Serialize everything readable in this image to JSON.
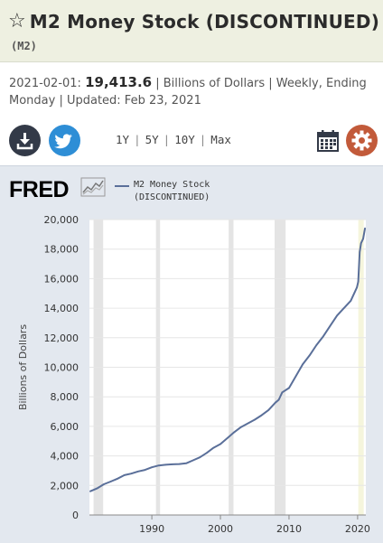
{
  "header": {
    "star_icon": "star-outline-icon",
    "title": "M2 Money Stock (DISCONTINUED)",
    "series_id": "(M2)"
  },
  "meta": {
    "date": "2021-02-01:",
    "value": "19,413.6",
    "details": "| Billions of Dollars | Weekly, Ending Monday | Updated: Feb 23, 2021"
  },
  "toolbar": {
    "ranges": [
      "1Y",
      "5Y",
      "10Y",
      "Max"
    ],
    "download_icon": "download-icon",
    "twitter_icon": "twitter-icon",
    "calendar_icon": "calendar-icon",
    "settings_icon": "gear-icon",
    "colors": {
      "download": "#333a48",
      "twitter": "#2e8ed6",
      "settings": "#c25a3a"
    }
  },
  "chart_panel": {
    "logo": "FRED",
    "legend_line1": "— M2 Money Stock",
    "legend_line2": "(DISCONTINUED)"
  },
  "chart_data": {
    "type": "line",
    "ylabel": "Billions of Dollars",
    "xlabel": "",
    "ylim": [
      0,
      20000
    ],
    "xlim": [
      1980.9,
      2021.2
    ],
    "yticks": [
      0,
      2000,
      4000,
      6000,
      8000,
      10000,
      12000,
      14000,
      16000,
      18000,
      20000
    ],
    "ytick_labels": [
      "0",
      "2,000",
      "4,000",
      "6,000",
      "8,000",
      "10,000",
      "12,000",
      "14,000",
      "16,000",
      "18,000",
      "20,000"
    ],
    "xticks": [
      1990,
      2000,
      2010,
      2020
    ],
    "xtick_labels": [
      "1990",
      "2000",
      "2010",
      "2020"
    ],
    "grid": true,
    "recessions": [
      [
        1981.5,
        1982.9
      ],
      [
        1990.6,
        1991.2
      ],
      [
        2001.2,
        2001.9
      ],
      [
        2007.9,
        2009.5
      ],
      [
        2020.1,
        2020.4
      ]
    ],
    "series": [
      {
        "name": "M2 Money Stock",
        "color": "#5a6f99",
        "x": [
          1981.0,
          1982.0,
          1983.0,
          1984.0,
          1985.0,
          1986.0,
          1987.0,
          1988.0,
          1989.0,
          1990.0,
          1991.0,
          1992.0,
          1993.0,
          1994.0,
          1995.0,
          1996.0,
          1997.0,
          1998.0,
          1999.0,
          2000.0,
          2001.0,
          2002.0,
          2003.0,
          2004.0,
          2005.0,
          2006.0,
          2007.0,
          2008.0,
          2008.5,
          2009.0,
          2010.0,
          2011.0,
          2012.0,
          2013.0,
          2014.0,
          2015.0,
          2016.0,
          2017.0,
          2018.0,
          2019.0,
          2019.9,
          2020.1,
          2020.3,
          2020.5,
          2020.8,
          2021.08
        ],
        "values": [
          1600,
          1800,
          2080,
          2260,
          2460,
          2700,
          2800,
          2950,
          3050,
          3230,
          3350,
          3400,
          3430,
          3450,
          3500,
          3700,
          3900,
          4200,
          4550,
          4800,
          5200,
          5600,
          5950,
          6200,
          6450,
          6750,
          7100,
          7600,
          7800,
          8300,
          8600,
          9400,
          10200,
          10800,
          11500,
          12100,
          12800,
          13500,
          14000,
          14500,
          15400,
          15800,
          17800,
          18400,
          18700,
          19413.6
        ]
      }
    ]
  }
}
